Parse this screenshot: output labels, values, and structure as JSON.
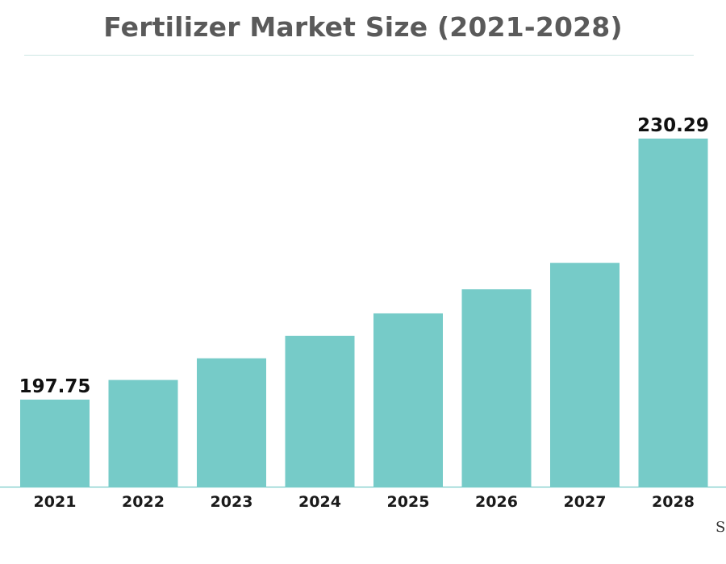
{
  "header": {
    "title": "Fertilizer Market Size (2021-2028)"
  },
  "chart_data": {
    "type": "bar",
    "title": "Fertilizer Market Size (2021-2028)",
    "xlabel": "",
    "ylabel": "",
    "categories": [
      "2021",
      "2022",
      "2023",
      "2024",
      "2025",
      "2026",
      "2027",
      "2028"
    ],
    "values": [
      197.75,
      200.2,
      202.9,
      205.7,
      208.5,
      211.5,
      214.8,
      230.29
    ],
    "data_labels": {
      "2021": "197.75",
      "2028": "230.29"
    },
    "ylim": [
      186.9,
      230.29
    ],
    "bar_color": "#76cbc8",
    "baseline_color": "#76cbc8",
    "grid": false,
    "legend": "none"
  },
  "watermark": {
    "text": "S"
  }
}
